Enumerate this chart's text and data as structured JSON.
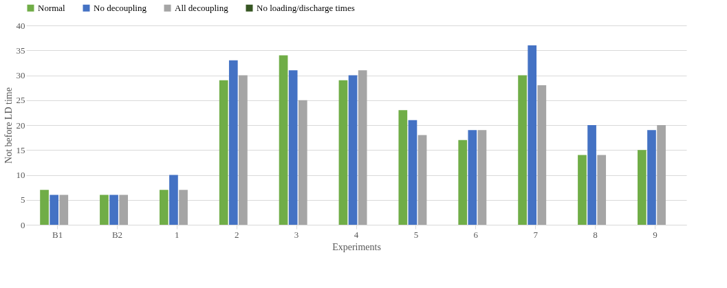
{
  "chart_data": {
    "type": "bar",
    "xlabel": "Experiments",
    "ylabel": "Not before LD time",
    "categories": [
      "B1",
      "B2",
      "1",
      "2",
      "3",
      "4",
      "5",
      "6",
      "7",
      "8",
      "9"
    ],
    "series": [
      {
        "name": "Normal",
        "color": "#70ad47",
        "values": [
          7,
          6,
          7,
          29,
          34,
          29,
          23,
          17,
          30,
          14,
          15
        ]
      },
      {
        "name": "No decoupling",
        "color": "#4472c4",
        "values": [
          6,
          6,
          10,
          33,
          31,
          30,
          21,
          19,
          36,
          20,
          19
        ]
      },
      {
        "name": "All decoupling",
        "color": "#a5a5a5",
        "values": [
          6,
          6,
          7,
          30,
          25,
          31,
          18,
          19,
          28,
          14,
          20
        ]
      },
      {
        "name": "No loading/discharge times",
        "color": "#375623",
        "values": [
          0,
          0,
          0,
          0,
          0,
          0,
          0,
          0,
          0,
          0,
          0
        ]
      }
    ],
    "ylim": [
      0,
      40
    ],
    "yticks": [
      0,
      5,
      10,
      15,
      20,
      25,
      30,
      35,
      40
    ],
    "grid": "y",
    "legend": "top"
  }
}
